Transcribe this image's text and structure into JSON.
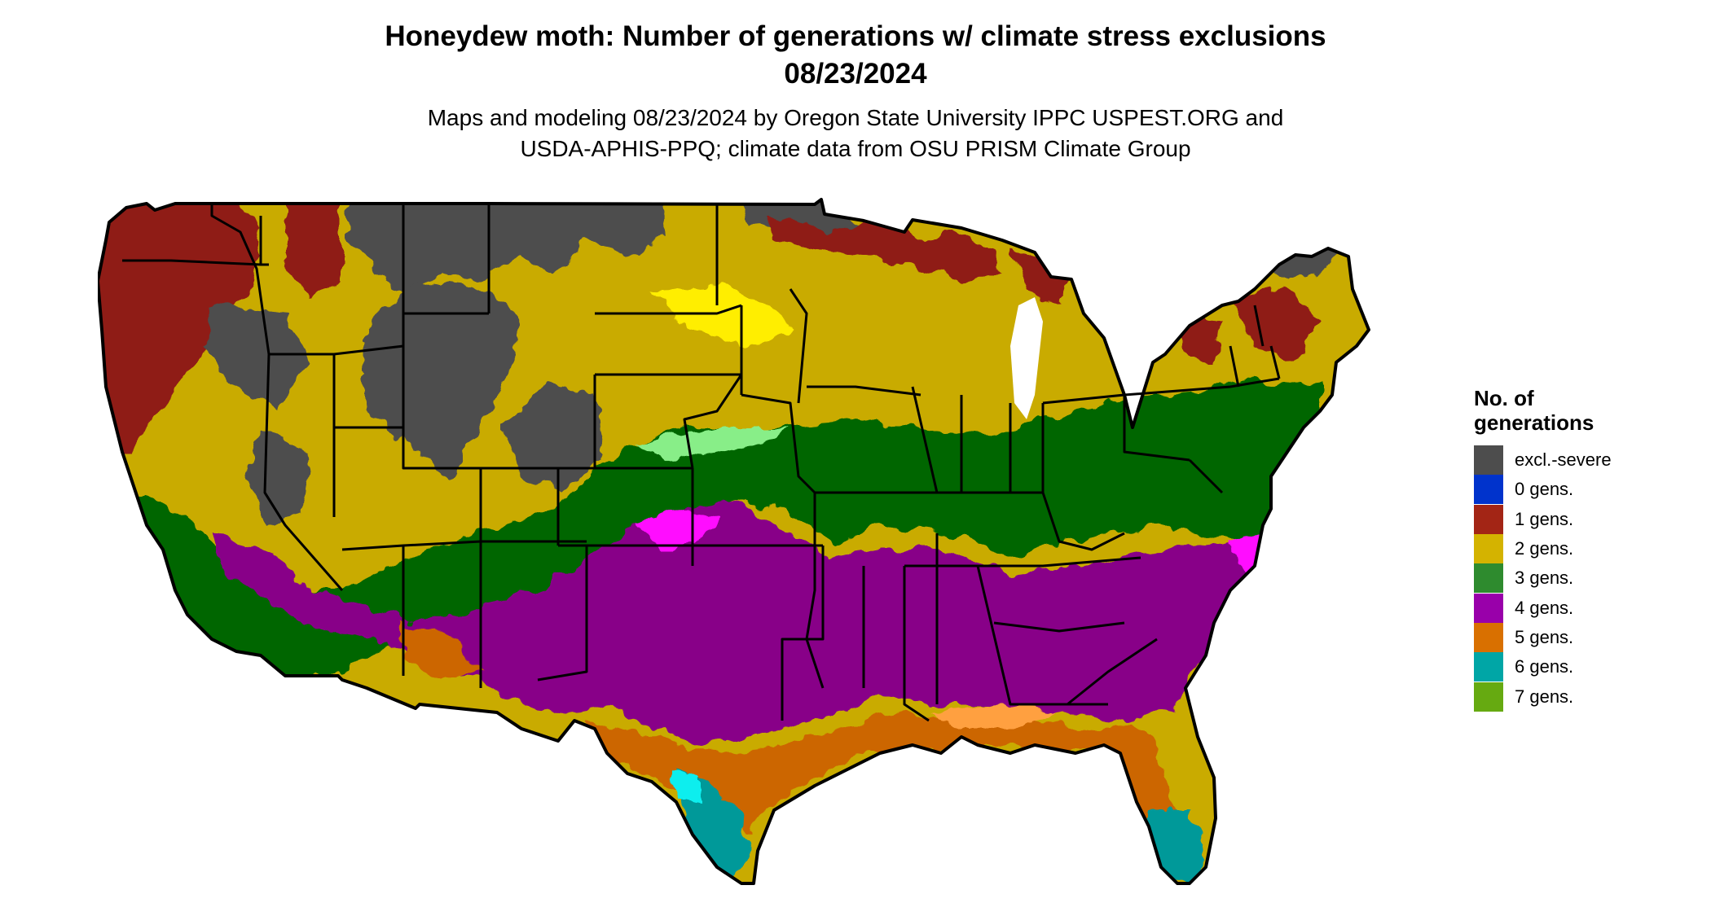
{
  "title": {
    "line1": "Honeydew moth: Number of generations w/ climate stress exclusions",
    "line2": "08/23/2024"
  },
  "subtitle": {
    "line1": "Maps and modeling 08/23/2024 by Oregon State University IPPC USPEST.ORG and",
    "line2": "USDA-APHIS-PPQ; climate data from OSU PRISM Climate Group"
  },
  "legend": {
    "title_line1": "No. of",
    "title_line2": "generations",
    "items": [
      {
        "label": "excl.-severe",
        "color": "#4d4d4d"
      },
      {
        "label": "0 gens.",
        "color": "#0033cc"
      },
      {
        "label": "1 gens.",
        "color": "#a32515"
      },
      {
        "label": "2 gens.",
        "color": "#d4b300"
      },
      {
        "label": "3 gens.",
        "color": "#2e8b2e"
      },
      {
        "label": "4 gens.",
        "color": "#9900aa"
      },
      {
        "label": "5 gens.",
        "color": "#d97000"
      },
      {
        "label": "6 gens.",
        "color": "#00a6a6"
      },
      {
        "label": "7 gens.",
        "color": "#66aa11"
      }
    ]
  },
  "map": {
    "region": "Contiguous United States",
    "palette": {
      "severe": "#4d4d4d",
      "gen1": "#8f1c14",
      "gen2": "#c9ab00",
      "gen2_yellow": "#ffee00",
      "gen3": "#006600",
      "gen3_light": "#88ee88",
      "gen4": "#880088",
      "gen4_magenta": "#ff11ff",
      "gen5": "#cc6600",
      "gen5_light": "#ffa040",
      "gen6": "#009999",
      "gen6_cyan": "#11eeee",
      "gen7": "#66cc22"
    }
  }
}
